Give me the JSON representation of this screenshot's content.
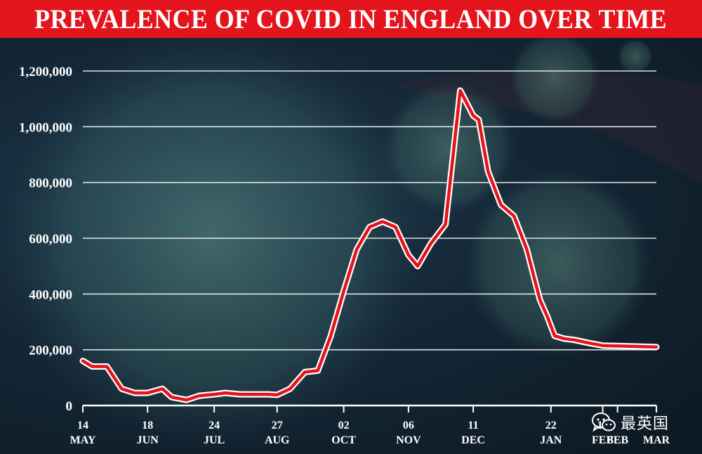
{
  "title": "PREVALENCE OF COVID IN ENGLAND OVER TIME",
  "watermark": {
    "icon": "wechat-icon",
    "text": "最英国"
  },
  "colors": {
    "title_bar": "#e3141b",
    "line": "#e3141b",
    "text": "#ffffff",
    "grid": "#ffffff"
  },
  "chart_data": {
    "type": "line",
    "title": "PREVALENCE OF COVID IN ENGLAND OVER TIME",
    "xlabel": "",
    "ylabel": "",
    "ylim": [
      0,
      1200000
    ],
    "yticks": [
      0,
      200000,
      400000,
      600000,
      800000,
      1000000,
      1200000
    ],
    "ytick_labels": [
      "0",
      "200,000",
      "400,000",
      "600,000",
      "800,000",
      "1,000,000",
      "1,200,000"
    ],
    "xlim": [
      "2020-05-14",
      "2021-03-20"
    ],
    "xticks": [
      {
        "date": "2020-05-14",
        "day": "14",
        "month": "MAY"
      },
      {
        "date": "2020-06-18",
        "day": "18",
        "month": "JUN"
      },
      {
        "date": "2020-07-24",
        "day": "24",
        "month": "JUL"
      },
      {
        "date": "2020-08-27",
        "day": "27",
        "month": "AUG"
      },
      {
        "date": "2020-10-02",
        "day": "02",
        "month": "OCT"
      },
      {
        "date": "2020-11-06",
        "day": "06",
        "month": "NOV"
      },
      {
        "date": "2020-12-11",
        "day": "11",
        "month": "DEC"
      },
      {
        "date": "2021-01-22",
        "day": "22",
        "month": "JAN"
      },
      {
        "date": "2021-02-19",
        "day": "19",
        "month": "FEB"
      },
      {
        "date": "2021-02-27",
        "day": "",
        "month": "FEB"
      },
      {
        "date": "2021-03-20",
        "day": "",
        "month": "MAR"
      }
    ],
    "grid": true,
    "series": [
      {
        "color": "#e3141b",
        "x": [
          "2020-05-14",
          "2020-05-19",
          "2020-05-27",
          "2020-06-04",
          "2020-06-11",
          "2020-06-18",
          "2020-06-26",
          "2020-07-01",
          "2020-07-09",
          "2020-07-16",
          "2020-07-24",
          "2020-07-30",
          "2020-08-07",
          "2020-08-15",
          "2020-08-22",
          "2020-08-27",
          "2020-09-03",
          "2020-09-11",
          "2020-09-18",
          "2020-09-25",
          "2020-10-02",
          "2020-10-09",
          "2020-10-16",
          "2020-10-23",
          "2020-10-30",
          "2020-11-06",
          "2020-11-11",
          "2020-11-18",
          "2020-11-26",
          "2020-12-04",
          "2020-12-11",
          "2020-12-14",
          "2020-12-19",
          "2020-12-26",
          "2021-01-02",
          "2021-01-09",
          "2021-01-16",
          "2021-01-20",
          "2021-01-24",
          "2021-01-29",
          "2021-02-04",
          "2021-02-11",
          "2021-02-19",
          "2021-03-20"
        ],
        "y": [
          160000,
          140000,
          140000,
          60000,
          45000,
          45000,
          60000,
          30000,
          20000,
          35000,
          40000,
          45000,
          40000,
          40000,
          40000,
          38000,
          60000,
          120000,
          125000,
          250000,
          410000,
          560000,
          640000,
          660000,
          640000,
          540000,
          500000,
          580000,
          650000,
          1130000,
          1040000,
          1025000,
          840000,
          720000,
          680000,
          560000,
          380000,
          320000,
          250000,
          240000,
          235000,
          225000,
          215000,
          210000
        ]
      }
    ]
  }
}
